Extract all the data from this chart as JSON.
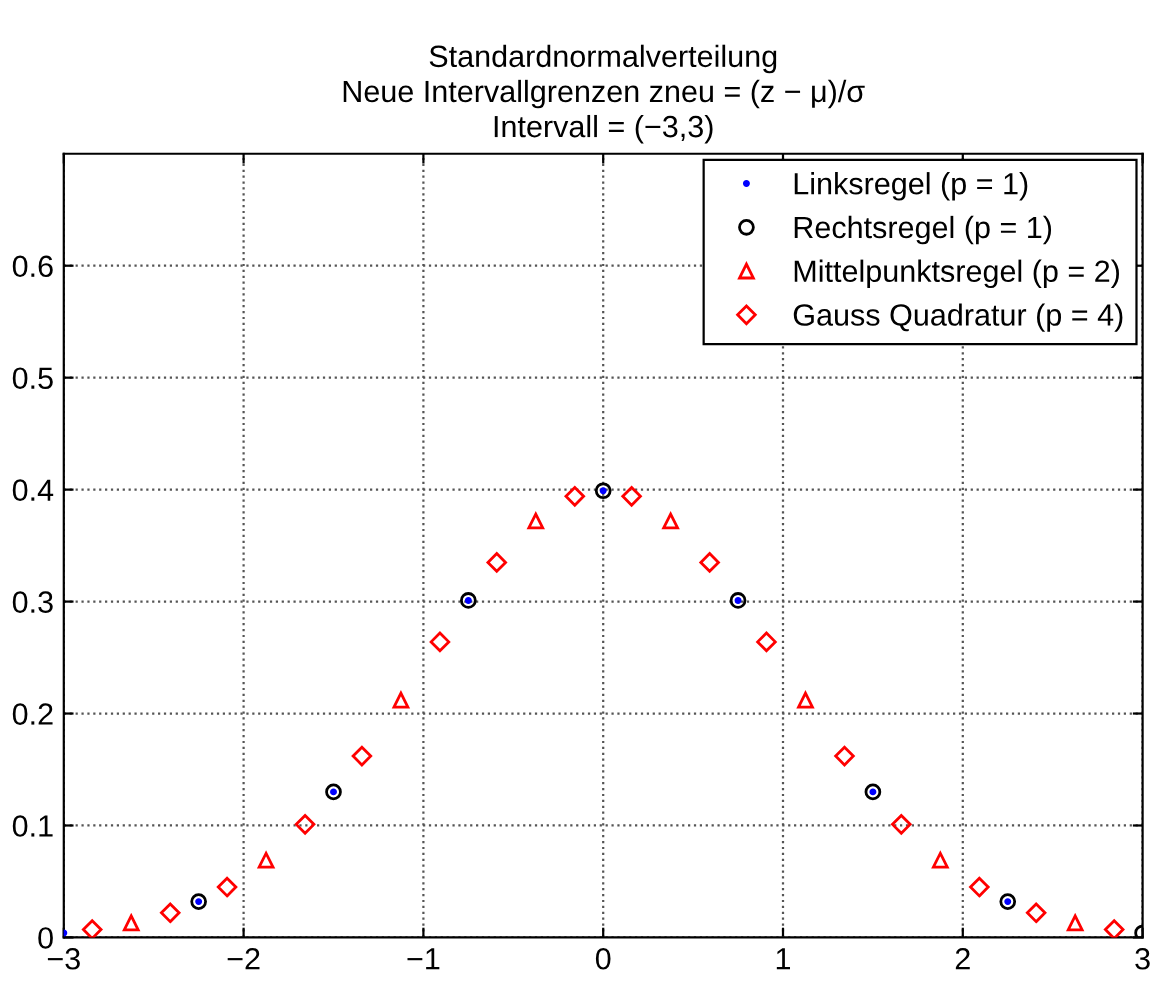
{
  "chart_data": {
    "type": "scatter",
    "title": "Standardnormalverteilung\nNeue Intervallgrenzen zneu = (z − μ)/σ\nIntervall = (−3,3)",
    "series": [
      {
        "name": "Linksregel (p = 1)",
        "color": "#0000ff",
        "marker": "circle",
        "x": [
          -3,
          -2.25,
          -1.5,
          -0.75,
          0,
          0.75,
          1.5,
          2.25
        ],
        "values": [
          0.004,
          0.032,
          0.13,
          0.301,
          0.399,
          0.301,
          0.13,
          0.032
        ]
      },
      {
        "name": "Rechtsregel (p = 1)",
        "color": "#000000",
        "marker": "circle",
        "x": [
          -2.25,
          -1.5,
          -0.75,
          0,
          0.75,
          1.5,
          2.25,
          3
        ],
        "values": [
          0.032,
          0.13,
          0.301,
          0.399,
          0.301,
          0.13,
          0.032,
          0.004
        ]
      },
      {
        "name": "Mittelpunktsregel (p = 2)",
        "color": "#ff0000",
        "marker": "triangle",
        "x": [
          -2.625,
          -1.875,
          -1.125,
          -0.375,
          0.375,
          1.125,
          1.875,
          2.625
        ],
        "values": [
          0.013,
          0.069,
          0.212,
          0.372,
          0.372,
          0.212,
          0.069,
          0.013
        ]
      },
      {
        "name": "Gauss Quadratur (p = 4)",
        "color": "#ff0000",
        "marker": "diamond",
        "x": [
          -2.842,
          -2.408,
          -2.092,
          -1.658,
          -1.342,
          -0.908,
          -0.592,
          -0.158,
          0.158,
          0.592,
          0.908,
          1.342,
          1.658,
          2.092,
          2.408,
          2.842
        ],
        "values": [
          0.007,
          0.022,
          0.045,
          0.101,
          0.162,
          0.264,
          0.335,
          0.394,
          0.394,
          0.335,
          0.264,
          0.162,
          0.101,
          0.045,
          0.022,
          0.007
        ]
      }
    ],
    "xlim": [
      -3,
      3
    ],
    "ylim": [
      0,
      0.7
    ],
    "xticks": [
      {
        "value": -3,
        "label": "−3"
      },
      {
        "value": -2,
        "label": "−2"
      },
      {
        "value": -1,
        "label": "−1"
      },
      0,
      1,
      2,
      3
    ],
    "yticks": [
      0,
      0.1,
      0.2,
      0.3,
      0.4,
      0.5,
      0.6
    ],
    "grid": true,
    "legend": "top right"
  }
}
